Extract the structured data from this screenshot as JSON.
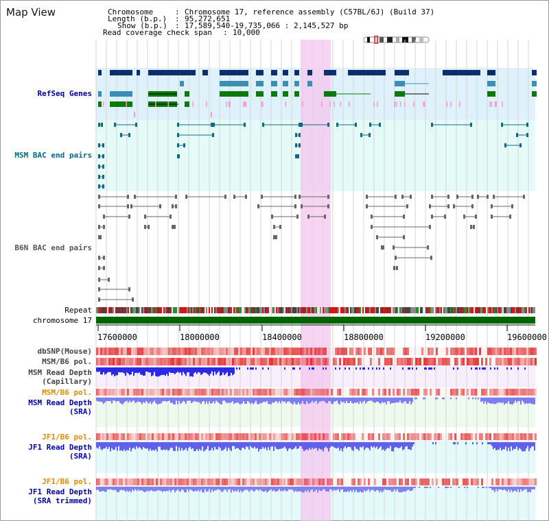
{
  "app": {
    "title": "Map View"
  },
  "info": {
    "chromosome_key": "Chromosome",
    "chromosome_val": "Chromosome 17, reference assembly (C57BL/6J) (Build 37)",
    "length_key": "Length (b.p.)",
    "length_val": "95,272,651",
    "show_key": "Show (b.p.)",
    "show_val": "17,589,540-19,735,066 : 2,145,527 bp",
    "coverage_key": "Read coverage check span",
    "coverage_val": "10,000"
  },
  "tracks": {
    "refseq": "RefSeq Genes",
    "msm_bac": "MSM BAC end pairs",
    "b6n_bac": "B6N BAC end pairs",
    "repeat": "Repeat",
    "chrom": "chromosome 17",
    "dbsnp": "dbSNP(Mouse)",
    "msm_pol_1": "MSM/B6 pol.",
    "msm_depth_cap_1": "MSM Read Depth",
    "msm_depth_cap_2": "(Capillary)",
    "msm_pol_2": "MSM/B6 pol.",
    "msm_depth_sra_1": "MSM Read Depth",
    "msm_depth_sra_2": "(SRA)",
    "jf1_pol_1": "JF1/B6 pol.",
    "jf1_depth_sra_1": "JF1 Read Depth",
    "jf1_depth_sra_2": "(SRA)",
    "jf1_pol_2": "JF1/B6 pol.",
    "jf1_depth_trim_1": "JF1 Read Depth",
    "jf1_depth_trim_2": "(SRA trimmed)"
  },
  "axis": {
    "ticks": [
      "17600000",
      "18000000",
      "18400000",
      "18800000",
      "19200000",
      "19600000"
    ]
  },
  "colors": {
    "refseq_label": "#000099",
    "msm_bac_label": "#006b80",
    "b6n_bac_label": "#555555",
    "pol_label_orange": "#e08a00",
    "depth_label_blue": "#0000aa",
    "highlight": "#f7d8f2",
    "chrom_green": "#006400"
  }
}
